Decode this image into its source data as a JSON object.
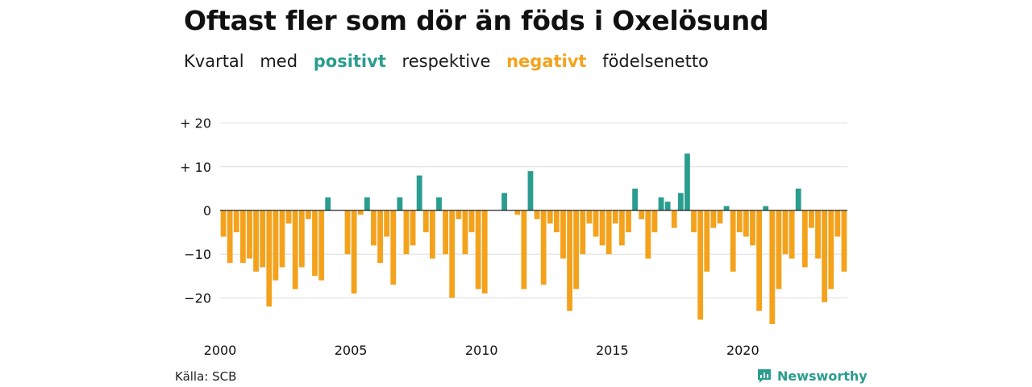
{
  "title": "Oftast fler som dör än föds i Oxelösund",
  "subtitle": {
    "part1": "Kvartal",
    "part2": "med",
    "positive_word": "positivt",
    "part3": "respektive",
    "negative_word": "negativt",
    "part4": "födelsenetto"
  },
  "colors": {
    "positive": "#2a9d8f",
    "negative": "#f4a21c",
    "grid": "#dddddd",
    "zero_line": "#222222"
  },
  "source": "Källa: SCB",
  "brand": "Newsworthy",
  "brand_icon": "bar-chart-speech-icon",
  "chart_data": {
    "type": "bar",
    "title": "Oftast fler som dör än föds i Oxelösund",
    "subtitle": "Kvartal med positivt respektive negativt födelsenetto",
    "xlabel": "",
    "ylabel": "",
    "ylim": [
      -27,
      22
    ],
    "y_ticks": [
      20,
      10,
      0,
      -10,
      -20
    ],
    "y_tick_labels": [
      "+ 20",
      "+ 10",
      "0",
      "−10",
      "−20"
    ],
    "x_tick_labels": [
      "2000",
      "2005",
      "2010",
      "2015",
      "2020"
    ],
    "x_tick_years": [
      2000,
      2005,
      2010,
      2015,
      2020
    ],
    "start_year": 2000,
    "grid": true,
    "legend": "none",
    "x": [
      "2000 Q1",
      "2000 Q2",
      "2000 Q3",
      "2000 Q4",
      "2001 Q1",
      "2001 Q2",
      "2001 Q3",
      "2001 Q4",
      "2002 Q1",
      "2002 Q2",
      "2002 Q3",
      "2002 Q4",
      "2003 Q1",
      "2003 Q2",
      "2003 Q3",
      "2003 Q4",
      "2004 Q1",
      "2004 Q2",
      "2004 Q3",
      "2004 Q4",
      "2005 Q1",
      "2005 Q2",
      "2005 Q3",
      "2005 Q4",
      "2006 Q1",
      "2006 Q2",
      "2006 Q3",
      "2006 Q4",
      "2007 Q1",
      "2007 Q2",
      "2007 Q3",
      "2007 Q4",
      "2008 Q1",
      "2008 Q2",
      "2008 Q3",
      "2008 Q4",
      "2009 Q1",
      "2009 Q2",
      "2009 Q3",
      "2009 Q4",
      "2010 Q1",
      "2010 Q2",
      "2010 Q3",
      "2010 Q4",
      "2011 Q1",
      "2011 Q2",
      "2011 Q3",
      "2011 Q4",
      "2012 Q1",
      "2012 Q2",
      "2012 Q3",
      "2012 Q4",
      "2013 Q1",
      "2013 Q2",
      "2013 Q3",
      "2013 Q4",
      "2014 Q1",
      "2014 Q2",
      "2014 Q3",
      "2014 Q4",
      "2015 Q1",
      "2015 Q2",
      "2015 Q3",
      "2015 Q4",
      "2016 Q1",
      "2016 Q2",
      "2016 Q3",
      "2016 Q4",
      "2017 Q1",
      "2017 Q2",
      "2017 Q3",
      "2017 Q4",
      "2018 Q1",
      "2018 Q2",
      "2018 Q3",
      "2018 Q4",
      "2019 Q1",
      "2019 Q2",
      "2019 Q3",
      "2019 Q4",
      "2020 Q1",
      "2020 Q2",
      "2020 Q3",
      "2020 Q4",
      "2021 Q1",
      "2021 Q2",
      "2021 Q3",
      "2021 Q4",
      "2022 Q1",
      "2022 Q2",
      "2022 Q3",
      "2022 Q4",
      "2023 Q1",
      "2023 Q2",
      "2023 Q3",
      "2023 Q4"
    ],
    "values": [
      -6,
      -12,
      -5,
      -12,
      -11,
      -14,
      -13,
      -22,
      -16,
      -13,
      -3,
      -18,
      -13,
      -2,
      -15,
      -16,
      3,
      0,
      0,
      -10,
      -19,
      -1,
      3,
      -8,
      -12,
      -6,
      -17,
      3,
      -10,
      -8,
      8,
      -5,
      -11,
      3,
      -10,
      -20,
      -2,
      -10,
      -5,
      -18,
      -19,
      0,
      0,
      4,
      0,
      -1,
      -18,
      9,
      -2,
      -17,
      -3,
      -5,
      -11,
      -23,
      -18,
      -10,
      -3,
      -6,
      -8,
      -10,
      -3,
      -8,
      -5,
      5,
      -2,
      -11,
      -5,
      3,
      2,
      -4,
      4,
      13,
      -5,
      -25,
      -14,
      -4,
      -3,
      1,
      -14,
      -5,
      -6,
      -8,
      -23,
      1,
      -26,
      -18,
      -10,
      -11,
      5,
      -13,
      -4,
      -11,
      -21,
      -18,
      -6,
      -14
    ]
  }
}
